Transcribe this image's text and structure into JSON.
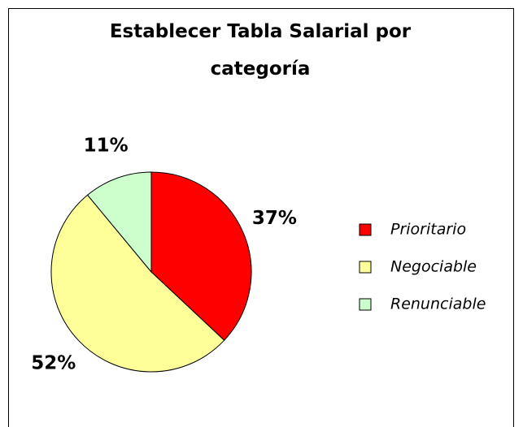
{
  "chart_data": {
    "type": "pie",
    "title": "Establecer Tabla Salarial por categoría",
    "categories": [
      "Prioritario",
      "Negociable",
      "Renunciable"
    ],
    "values": [
      37,
      52,
      11
    ],
    "value_labels": [
      "37%",
      "52%",
      "11%"
    ],
    "colors": [
      "#ff0000",
      "#ffff99",
      "#ccffcc"
    ],
    "legend": "right"
  }
}
